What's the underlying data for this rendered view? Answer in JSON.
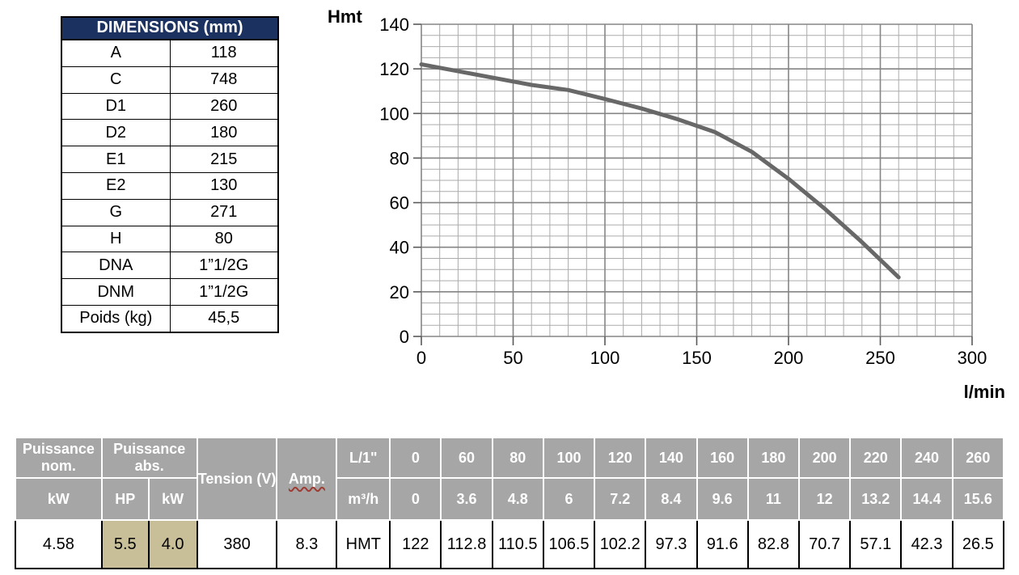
{
  "dimensions_table": {
    "title": "DIMENSIONS (mm)",
    "rows": [
      {
        "label": "A",
        "value": "118"
      },
      {
        "label": "C",
        "value": "748"
      },
      {
        "label": "D1",
        "value": "260"
      },
      {
        "label": "D2",
        "value": "180"
      },
      {
        "label": "E1",
        "value": "215"
      },
      {
        "label": "E2",
        "value": "130"
      },
      {
        "label": "G",
        "value": "271"
      },
      {
        "label": "H",
        "value": "80"
      },
      {
        "label": "DNA",
        "value": "1”1/2G"
      },
      {
        "label": "DNM",
        "value": "1”1/2G"
      },
      {
        "label": "Poids (kg)",
        "value": "45,5"
      }
    ]
  },
  "chart_data": {
    "type": "line",
    "title": "",
    "ylabel": "Hmt",
    "xlabel": "l/min",
    "x": [
      0,
      60,
      80,
      100,
      120,
      140,
      160,
      180,
      200,
      220,
      240,
      260
    ],
    "y": [
      122,
      112.8,
      110.5,
      106.5,
      102.2,
      97.3,
      91.6,
      82.8,
      70.7,
      57.1,
      42.3,
      26.5
    ],
    "xlim": [
      0,
      300
    ],
    "ylim": [
      0,
      140
    ],
    "x_tick_step": 50,
    "y_tick_step": 20,
    "x_minor_step": 10,
    "y_minor_step": 5,
    "grid": "on",
    "legend": "none",
    "line_color": "#686868"
  },
  "spec_table": {
    "puissance_nom_label": "Puissance nom.",
    "puissance_abs_label": "Puissance abs.",
    "kw_label": "kW",
    "hp_label": "HP",
    "tension_label": "Tension (V)",
    "amp_label": "Amp.",
    "flow_lmin_label": "L/1\"",
    "flow_m3h_label": "m³/h",
    "hmt_label": "HMT",
    "puissance_nom_value": "4.58",
    "hp_value": "5.5",
    "kw_value": "4.0",
    "tension_value": "380",
    "amp_value": "8.3",
    "lmin_values": [
      "0",
      "60",
      "80",
      "100",
      "120",
      "140",
      "160",
      "180",
      "200",
      "220",
      "240",
      "260"
    ],
    "m3h_values": [
      "0",
      "3.6",
      "4.8",
      "6",
      "7.2",
      "8.4",
      "9.6",
      "11",
      "12",
      "13.2",
      "14.4",
      "15.6"
    ],
    "hmt_values": [
      "122",
      "112.8",
      "110.5",
      "106.5",
      "102.2",
      "97.3",
      "91.6",
      "82.8",
      "70.7",
      "57.1",
      "42.3",
      "26.5"
    ]
  },
  "colors": {
    "dimensions_header_bg": "#1b3160",
    "spec_header_bg": "#a6a6a6",
    "highlight_tan": "#c8bf99",
    "curve_gray": "#686868",
    "grid_minor": "#ababab",
    "grid_major": "#858585",
    "squiggle_red": "#9e3b32"
  }
}
